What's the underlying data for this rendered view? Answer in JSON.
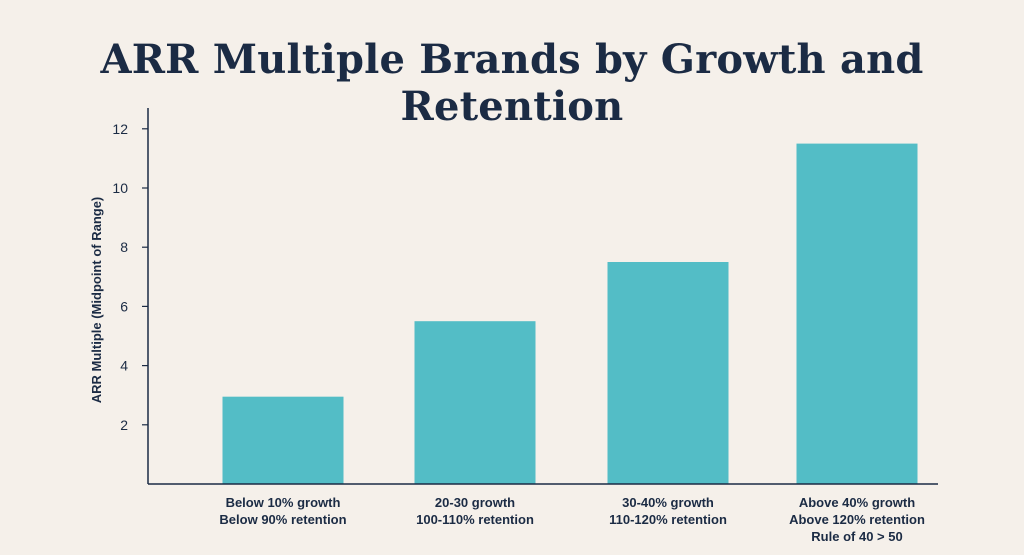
{
  "chart_data": {
    "type": "bar",
    "title": "ARR Multiple Brands by Growth and Retention",
    "ylabel": "ARR Multiple (Midpoint of Range)",
    "xlabel": "",
    "ylim": [
      0,
      12.6
    ],
    "yticks": [
      2,
      4,
      6,
      8,
      10,
      12
    ],
    "categories": [
      [
        "Below 10% growth",
        "Below 90% retention"
      ],
      [
        "20-30 growth",
        "100-110% retention"
      ],
      [
        "30-40% growth",
        "110-120% retention"
      ],
      [
        "Above 40% growth",
        "Above 120% retention",
        "Rule of 40 > 50"
      ]
    ],
    "values": [
      2.95,
      5.5,
      7.5,
      11.5
    ],
    "grid": false,
    "colors": {
      "bar": "#53bdc6",
      "axis": "#1b2b44",
      "text": "#1b2b44",
      "background": "#f5f0ea"
    }
  }
}
